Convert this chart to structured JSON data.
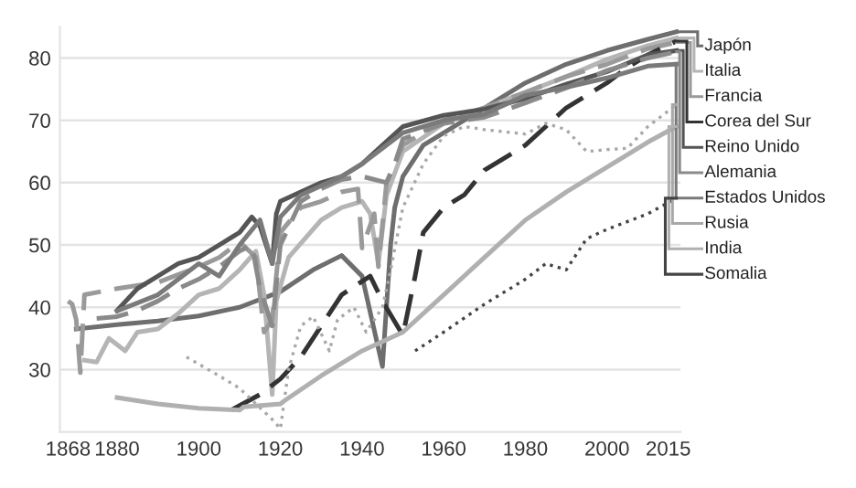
{
  "chart_data": {
    "type": "line",
    "xlim": [
      1866,
      2018
    ],
    "ylim": [
      20,
      85
    ],
    "xticks": [
      1868,
      1880,
      1900,
      1920,
      1940,
      1960,
      1980,
      2000,
      2015
    ],
    "yticks": [
      30,
      40,
      50,
      60,
      70,
      80
    ],
    "grid": "y",
    "legend": "right",
    "marker": "none",
    "series": [
      {
        "name": "Japón",
        "color": "#6e6e6e",
        "line_style": "solid",
        "x": [
          1870,
          1880,
          1890,
          1900,
          1910,
          1920,
          1928,
          1935,
          1940,
          1945,
          1947,
          1948,
          1950,
          1955,
          1960,
          1970,
          1980,
          1990,
          2000,
          2010,
          2017
        ],
        "values": [
          36.5,
          37.2,
          37.8,
          38.6,
          40,
          42.5,
          46,
          48.3,
          45,
          30.5,
          50,
          56,
          61,
          66,
          68,
          72,
          76,
          79,
          81.2,
          83,
          84.2
        ]
      },
      {
        "name": "Italia",
        "color": "#b5b5b5",
        "line_style": "solid",
        "x": [
          1872,
          1875,
          1878,
          1882,
          1885,
          1890,
          1895,
          1900,
          1905,
          1910,
          1914,
          1916,
          1918,
          1919,
          1922,
          1930,
          1935,
          1940,
          1942,
          1944,
          1946,
          1950,
          1960,
          1970,
          1980,
          1990,
          2000,
          2010,
          2017
        ],
        "values": [
          31.5,
          31.2,
          35,
          33,
          36,
          36.5,
          39,
          42,
          43,
          46,
          49,
          42,
          26,
          41,
          48,
          54,
          56,
          57,
          55,
          47,
          58,
          65,
          69.5,
          72,
          74.5,
          77,
          79.8,
          82,
          83.2
        ]
      },
      {
        "name": "Francia",
        "color": "#9a9a9a",
        "line_style": "dashed",
        "x": [
          1868,
          1869,
          1870,
          1871,
          1872,
          1880,
          1890,
          1900,
          1905,
          1910,
          1914,
          1916,
          1918,
          1920,
          1925,
          1930,
          1935,
          1939,
          1940,
          1943,
          1944,
          1946,
          1950,
          1960,
          1970,
          1980,
          1990,
          2000,
          2010,
          2017
        ],
        "values": [
          41,
          40.5,
          38,
          29.5,
          42,
          43,
          44,
          46.5,
          48,
          50.5,
          48,
          36,
          38,
          52,
          56,
          57,
          58.5,
          59,
          49.5,
          55,
          46.5,
          60,
          66,
          70,
          72,
          74.5,
          77,
          79,
          81.5,
          82.5
        ]
      },
      {
        "name": "Corea del Sur",
        "color": "#333333",
        "line_style": "dashed",
        "x": [
          1908,
          1915,
          1920,
          1925,
          1930,
          1935,
          1942,
          1945,
          1950,
          1953,
          1955,
          1960,
          1965,
          1970,
          1975,
          1980,
          1985,
          1990,
          1995,
          2000,
          2005,
          2010,
          2017
        ],
        "values": [
          23.5,
          26,
          28.5,
          32,
          37,
          42,
          45,
          41,
          35.5,
          45,
          52,
          56,
          58,
          62,
          64,
          66,
          69,
          72,
          74,
          76,
          78.5,
          80.5,
          82.7
        ]
      },
      {
        "name": "Reino Unido",
        "color": "#555555",
        "line_style": "solid",
        "x": [
          1880,
          1885,
          1890,
          1895,
          1900,
          1905,
          1910,
          1913,
          1915,
          1918,
          1919,
          1920,
          1925,
          1930,
          1935,
          1940,
          1945,
          1950,
          1960,
          1970,
          1980,
          1990,
          2000,
          2010,
          2017
        ],
        "values": [
          39.5,
          43,
          45,
          47,
          48,
          50,
          52,
          54.5,
          53,
          47,
          55,
          57,
          58.5,
          60,
          61,
          63,
          66,
          69,
          70.8,
          71.8,
          73.5,
          75.8,
          77.8,
          80.5,
          81.2
        ]
      },
      {
        "name": "Alemania",
        "color": "#8a8a8a",
        "line_style": "dashed",
        "x": [
          1875,
          1880,
          1885,
          1890,
          1895,
          1900,
          1905,
          1910,
          1913,
          1915,
          1918,
          1920,
          1925,
          1930,
          1935,
          1940,
          1946,
          1948,
          1950,
          1960,
          1970,
          1980,
          1990,
          2000,
          2010,
          2017
        ],
        "values": [
          38.2,
          38.5,
          39.5,
          41,
          43,
          44.5,
          46.5,
          49,
          50,
          43,
          37,
          50,
          57,
          59,
          60.5,
          61,
          60,
          63,
          67,
          69.5,
          70.5,
          72.8,
          75.2,
          78,
          80,
          81
        ]
      },
      {
        "name": "Estados Unidos",
        "color": "#7a7a7a",
        "line_style": "solid",
        "x": [
          1880,
          1890,
          1900,
          1905,
          1910,
          1915,
          1918,
          1920,
          1925,
          1930,
          1935,
          1940,
          1945,
          1950,
          1960,
          1970,
          1980,
          1990,
          2000,
          2010,
          2017
        ],
        "values": [
          39.4,
          42,
          47,
          45,
          50,
          54,
          47,
          54.5,
          58,
          59.5,
          61,
          63,
          65.5,
          68,
          70,
          71,
          74,
          75.3,
          76.8,
          78.7,
          79
        ]
      },
      {
        "name": "Rusia",
        "color": "#a8a8a8",
        "line_style": "dotted",
        "x": [
          1897,
          1905,
          1910,
          1918,
          1920,
          1922,
          1925,
          1928,
          1932,
          1934,
          1938,
          1941,
          1945,
          1947,
          1950,
          1955,
          1960,
          1965,
          1970,
          1980,
          1985,
          1990,
          1995,
          2000,
          2005,
          2010,
          2017
        ],
        "values": [
          32,
          29,
          27,
          22,
          20.5,
          30,
          37,
          38.5,
          33,
          38,
          40,
          36,
          40,
          46,
          56,
          63,
          67.5,
          69,
          68.5,
          67.8,
          69.5,
          68.5,
          65,
          65.3,
          65.5,
          69,
          72.5
        ]
      },
      {
        "name": "India",
        "color": "#b0b0b0",
        "line_style": "solid",
        "x": [
          1880,
          1890,
          1900,
          1910,
          1911,
          1920,
          1921,
          1930,
          1940,
          1950,
          1960,
          1970,
          1980,
          1990,
          2000,
          2010,
          2017
        ],
        "values": [
          25.5,
          24.5,
          23.8,
          23.5,
          24,
          24.5,
          25,
          29,
          33,
          36,
          42,
          48,
          54,
          58.5,
          62.5,
          66.5,
          69
        ]
      },
      {
        "name": "Somalia",
        "color": "#444444",
        "line_style": "dotted",
        "x": [
          1953,
          1960,
          1970,
          1980,
          1985,
          1990,
          1995,
          2000,
          2010,
          2017
        ],
        "values": [
          33,
          36,
          40.5,
          44.5,
          47,
          46,
          51,
          52.5,
          55,
          57.5
        ]
      }
    ]
  }
}
